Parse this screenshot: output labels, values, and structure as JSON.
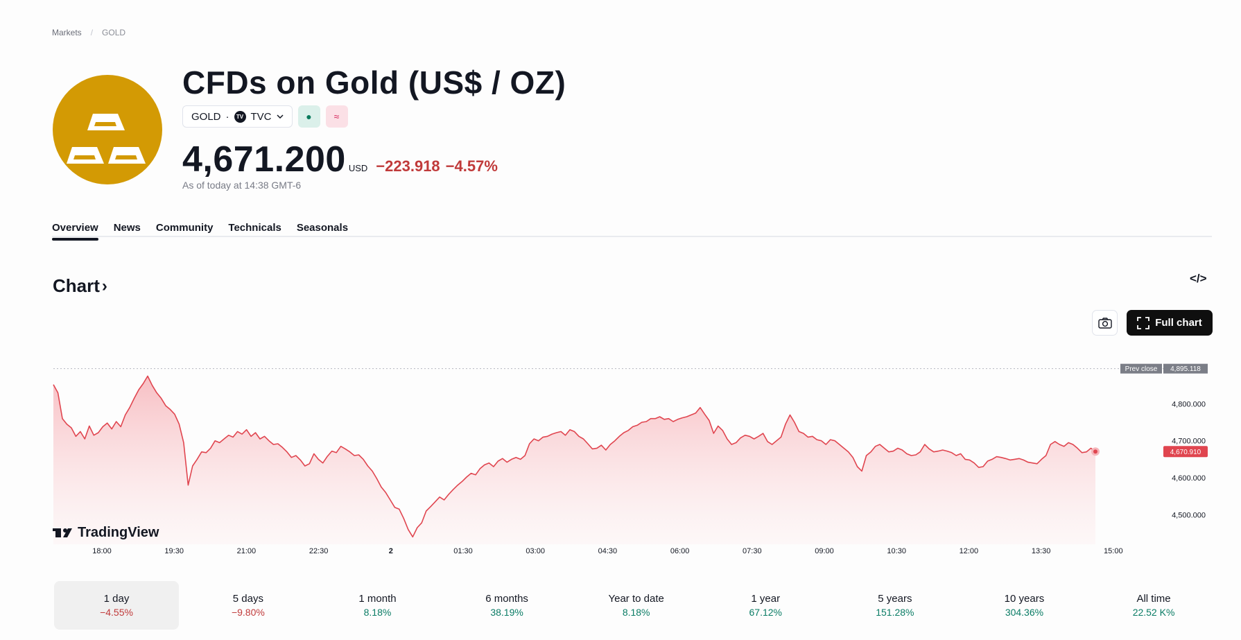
{
  "breadcrumb": {
    "root": "Markets",
    "separator": "/",
    "current": "GOLD"
  },
  "instrument": {
    "title": "CFDs on Gold (US$ / OZ)",
    "ticker": "GOLD",
    "dot": "·",
    "exchange": "TVC",
    "exchange_badge": "TV",
    "market_status_icon": "●",
    "delay_icon": "≈"
  },
  "quote": {
    "price": "4,671.200",
    "currency": "USD",
    "change": "−223.918",
    "change_percent": "−4.57%",
    "as_of": "As of today at 14:38 GMT-6"
  },
  "tabs": [
    "Overview",
    "News",
    "Community",
    "Technicals",
    "Seasonals"
  ],
  "chart_section": {
    "heading": "Chart",
    "heading_arrow": "›",
    "embed_label": "</>",
    "full_chart_label": "Full chart"
  },
  "chart_data": {
    "type": "area",
    "x_ticks": [
      "18:00",
      "19:30",
      "21:00",
      "22:30",
      "2",
      "01:30",
      "03:00",
      "04:30",
      "06:00",
      "07:30",
      "09:00",
      "10:30",
      "12:00",
      "13:30",
      "15:00"
    ],
    "y_ticks": [
      "4,800.000",
      "4,700.000",
      "4,600.000",
      "4,500.000"
    ],
    "ylim": [
      4420,
      4917
    ],
    "prev_close": {
      "label": "Prev close",
      "value": 4895.118,
      "value_text": "4,895.118"
    },
    "last_price": {
      "value": 4670.91,
      "value_text": "4,670.910"
    },
    "series": [
      {
        "values": [
          4852,
          4830,
          4760,
          4745,
          4735,
          4712,
          4725,
          4705,
          4740,
          4715,
          4722,
          4738,
          4748,
          4732,
          4752,
          4738,
          4770,
          4790,
          4815,
          4838,
          4855,
          4875,
          4850,
          4830,
          4815,
          4795,
          4785,
          4772,
          4745,
          4695,
          4580,
          4632,
          4650,
          4670,
          4668,
          4680,
          4700,
          4695,
          4705,
          4715,
          4710,
          4725,
          4718,
          4730,
          4712,
          4722,
          4705,
          4712,
          4700,
          4690,
          4692,
          4682,
          4670,
          4655,
          4660,
          4648,
          4632,
          4638,
          4665,
          4650,
          4640,
          4658,
          4672,
          4668,
          4685,
          4678,
          4670,
          4660,
          4662,
          4650,
          4632,
          4618,
          4598,
          4575,
          4560,
          4540,
          4520,
          4515,
          4490,
          4460,
          4440,
          4465,
          4478,
          4510,
          4522,
          4535,
          4548,
          4540,
          4555,
          4568,
          4580,
          4590,
          4602,
          4612,
          4608,
          4625,
          4635,
          4640,
          4630,
          4645,
          4652,
          4642,
          4650,
          4655,
          4650,
          4660,
          4692,
          4705,
          4700,
          4710,
          4712,
          4718,
          4722,
          4725,
          4715,
          4730,
          4725,
          4712,
          4705,
          4692,
          4678,
          4680,
          4688,
          4675,
          4690,
          4700,
          4712,
          4722,
          4728,
          4738,
          4742,
          4750,
          4752,
          4760,
          4760,
          4765,
          4758,
          4760,
          4752,
          4758,
          4762,
          4765,
          4770,
          4775,
          4790,
          4772,
          4755,
          4720,
          4740,
          4728,
          4705,
          4690,
          4695,
          4708,
          4715,
          4712,
          4705,
          4712,
          4720,
          4698,
          4690,
          4700,
          4710,
          4745,
          4770,
          4750,
          4725,
          4720,
          4710,
          4712,
          4703,
          4700,
          4690,
          4703,
          4700,
          4690,
          4680,
          4670,
          4655,
          4630,
          4618,
          4660,
          4670,
          4685,
          4690,
          4680,
          4670,
          4672,
          4680,
          4675,
          4665,
          4660,
          4662,
          4670,
          4690,
          4678,
          4670,
          4672,
          4675,
          4672,
          4668,
          4660,
          4665,
          4650,
          4648,
          4640,
          4628,
          4630,
          4645,
          4650,
          4657,
          4655,
          4652,
          4648,
          4650,
          4652,
          4648,
          4642,
          4640,
          4638,
          4650,
          4660,
          4690,
          4698,
          4690,
          4685,
          4695,
          4690,
          4680,
          4668,
          4670,
          4680,
          4670.9
        ]
      }
    ]
  },
  "periods": [
    {
      "label": "1 day",
      "value": "−4.55%",
      "trend": "neg"
    },
    {
      "label": "5 days",
      "value": "−9.80%",
      "trend": "neg"
    },
    {
      "label": "1 month",
      "value": "8.18%",
      "trend": "pos"
    },
    {
      "label": "6 months",
      "value": "38.19%",
      "trend": "pos"
    },
    {
      "label": "Year to date",
      "value": "8.18%",
      "trend": "pos"
    },
    {
      "label": "1 year",
      "value": "67.12%",
      "trend": "pos"
    },
    {
      "label": "5 years",
      "value": "151.28%",
      "trend": "pos"
    },
    {
      "label": "10 years",
      "value": "304.36%",
      "trend": "pos"
    },
    {
      "label": "All time",
      "value": "22.52 K%",
      "trend": "pos"
    }
  ],
  "branding": {
    "wordmark": "TradingView"
  },
  "colors": {
    "line": "#e0454f",
    "logo_bg": "#d39a04",
    "negative": "#c03a3a",
    "positive": "#0a7c65",
    "prev_close_tag": "#7b7e87"
  }
}
